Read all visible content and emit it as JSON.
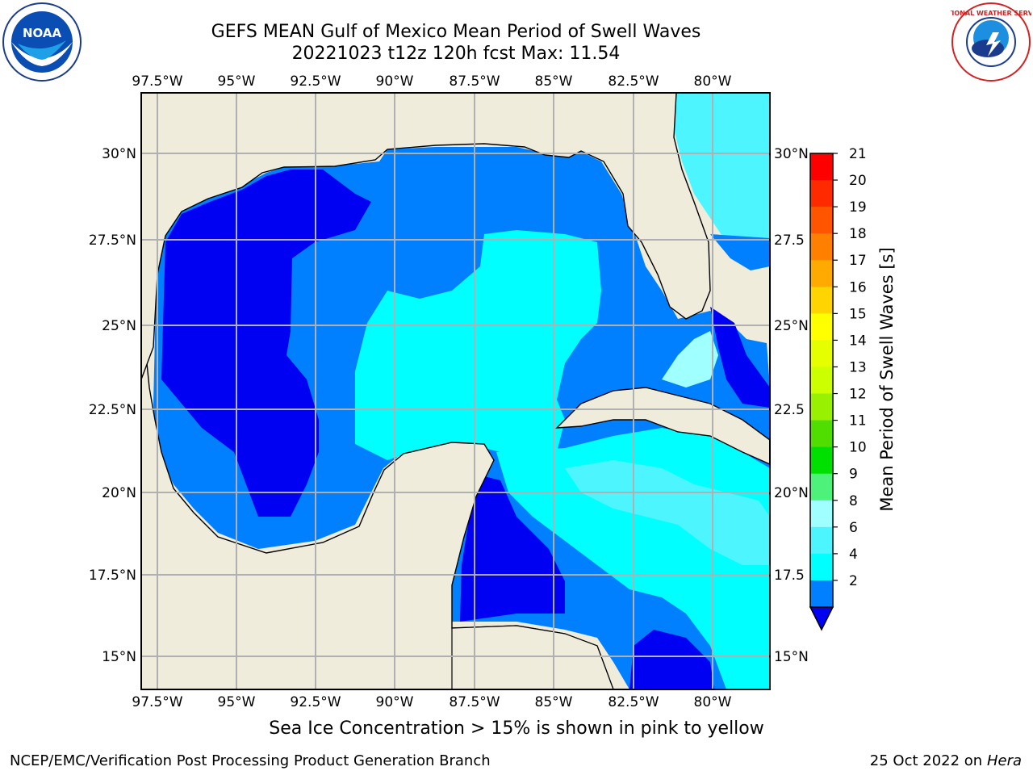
{
  "header": {
    "title_line1": "GEFS MEAN Gulf of Mexico Mean Period of Swell Waves",
    "title_line2": "20221023 t12z 120h fcst   Max: 11.54"
  },
  "logos": {
    "left": "noaa-logo",
    "right": "national-weather-service-logo",
    "left_text": "NOAA",
    "right_text": "NATIONAL WEATHER SERVICE"
  },
  "map": {
    "lon_labels": [
      "97.5°W",
      "95°W",
      "92.5°W",
      "90°W",
      "87.5°W",
      "85°W",
      "82.5°W",
      "80°W"
    ],
    "lat_labels_left": [
      "30°N",
      "27.5°N",
      "25°N",
      "22.5°N",
      "20°N",
      "17.5°N",
      "15°N"
    ],
    "lat_labels_right": [
      "30°N",
      "27.5",
      "25°N",
      "22.5",
      "20°N",
      "17.5",
      "15°N"
    ],
    "colors": {
      "land": "#efecdc",
      "c2": "#0000f2",
      "c3": "#0080ff",
      "c4": "#00ffff",
      "c6": "#4cf5ff",
      "c8": "#a0ffff",
      "c9": "#50f07a",
      "c10": "#00d000",
      "grid": "#b0b0b0"
    }
  },
  "colorbar": {
    "label": "Mean Period of Swell Waves [s]",
    "ticks": [
      "21",
      "20",
      "19",
      "18",
      "17",
      "16",
      "15",
      "14",
      "13",
      "12",
      "11",
      "10",
      "9",
      "8",
      "6",
      "4",
      "2"
    ],
    "colors_top_to_bottom": [
      "#ff0000",
      "#ff2a00",
      "#ff5500",
      "#ff8000",
      "#ffaa00",
      "#ffd400",
      "#ffff00",
      "#e6ff00",
      "#ccff00",
      "#99f000",
      "#50dd00",
      "#00e000",
      "#4cf27a",
      "#a0ffff",
      "#4cf5ff",
      "#00ffff",
      "#0080ff"
    ],
    "extend_color": "#0000f2"
  },
  "caption": "Sea Ice Concentration > 15% is shown in pink to yellow",
  "footer": {
    "left": "NCEP/EMC/Verification Post Processing Product Generation Branch",
    "right_prefix": "25 Oct 2022 on ",
    "right_host": "Hera"
  }
}
